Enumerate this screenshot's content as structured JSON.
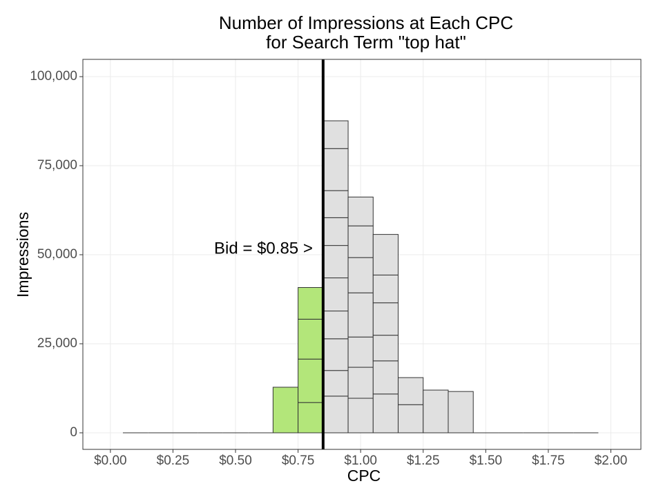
{
  "chart_data": {
    "type": "histogram",
    "title": [
      "Number of Impressions at Each CPC",
      "for Search Term \"top hat\""
    ],
    "x_label": "CPC",
    "y_label": "Impressions",
    "bins": [
      0.05,
      0.15,
      0.25,
      0.35,
      0.45,
      0.55,
      0.65,
      0.75,
      0.85,
      0.95,
      1.05,
      1.15,
      1.25,
      1.35,
      1.45,
      1.55,
      1.65,
      1.75,
      1.85,
      1.95
    ],
    "counts": [
      [
        0
      ],
      [
        0
      ],
      [
        0
      ],
      [
        0
      ],
      [
        0
      ],
      [
        0
      ],
      [
        12800
      ],
      [
        8500,
        12200,
        11200,
        8900
      ],
      [
        10300,
        7200,
        8900,
        7800,
        9300,
        9100,
        7800,
        7600,
        11800,
        7800
      ],
      [
        9700,
        8700,
        8500,
        12400,
        9900,
        8900,
        8100
      ],
      [
        10900,
        9300,
        7200,
        9100,
        7800,
        11400
      ],
      [
        7900,
        7600
      ],
      [
        12000
      ],
      [
        11600
      ],
      [
        0
      ],
      [
        0
      ],
      [
        0
      ],
      [
        0
      ],
      [
        0
      ]
    ],
    "bid": 0.85,
    "bid_label": "Bid = $0.85 >",
    "fill_below_bid": "#b3e67a",
    "fill_above_bid": "#e0e0e0",
    "xlim": [
      -0.11,
      2.12
    ],
    "ylim": [
      -4650,
      104850
    ],
    "xticks": [
      {
        "value": 0,
        "label": "$0.00"
      },
      {
        "value": 0.25,
        "label": "$0.25"
      },
      {
        "value": 0.5,
        "label": "$0.50"
      },
      {
        "value": 0.75,
        "label": "$0.75"
      },
      {
        "value": 1,
        "label": "$1.00"
      },
      {
        "value": 1.25,
        "label": "$1.25"
      },
      {
        "value": 1.5,
        "label": "$1.50"
      },
      {
        "value": 1.75,
        "label": "$1.75"
      },
      {
        "value": 2,
        "label": "$2.00"
      }
    ],
    "yticks": [
      0,
      {
        "value": 25000,
        "label": "25,000"
      },
      {
        "value": 50000,
        "label": "50,000"
      },
      {
        "value": 75000,
        "label": "75,000"
      },
      {
        "value": 100000,
        "label": "100,000"
      }
    ],
    "grid": true
  }
}
